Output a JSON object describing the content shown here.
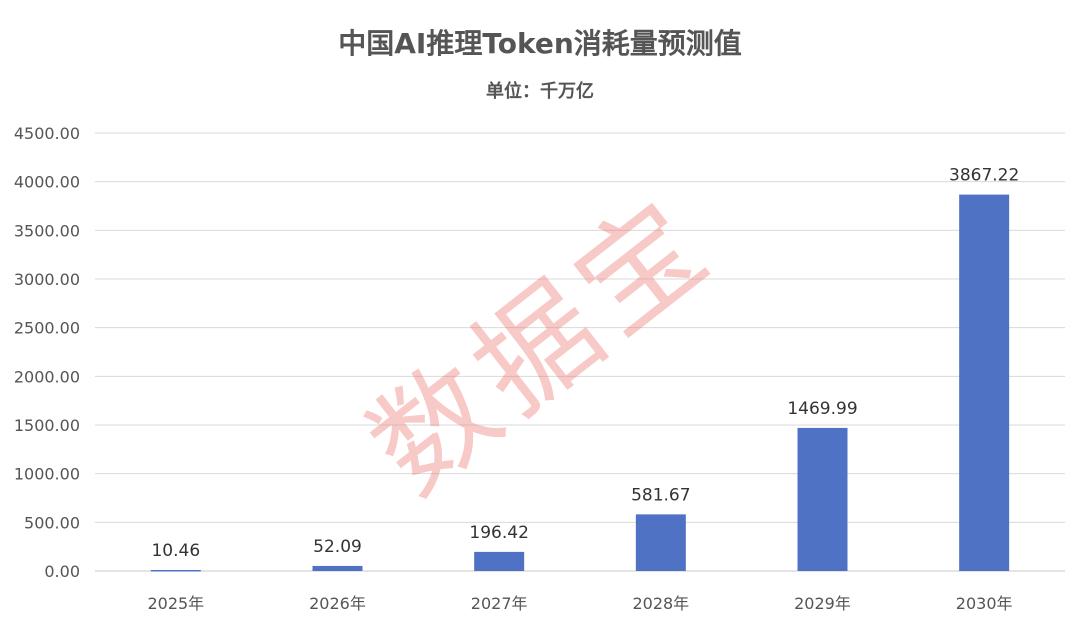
{
  "chart_data": {
    "type": "bar",
    "title": "中国AI推理Token消耗量预测值",
    "subtitle": "单位：千万亿",
    "categories": [
      "2025年",
      "2026年",
      "2027年",
      "2028年",
      "2029年",
      "2030年"
    ],
    "values": [
      10.46,
      52.09,
      196.42,
      581.67,
      1469.99,
      3867.22
    ],
    "data_labels": [
      "10.46",
      "52.09",
      "196.42",
      "581.67",
      "1469.99",
      "3867.22"
    ],
    "ylim": [
      0,
      4500
    ],
    "yticks": [
      "0.00",
      "500.00",
      "1000.00",
      "1500.00",
      "2000.00",
      "2500.00",
      "3000.00",
      "3500.00",
      "4000.00",
      "4500.00"
    ],
    "grid": true,
    "bar_color": "#4F72C4",
    "watermark": "数据宝"
  }
}
